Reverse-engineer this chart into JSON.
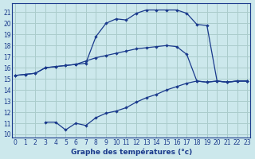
{
  "xlabel": "Graphe des températures (°c)",
  "bg_color": "#cce8ec",
  "grid_color": "#aacccc",
  "line_color": "#1a3a8c",
  "x_ticks": [
    0,
    1,
    2,
    3,
    4,
    5,
    6,
    7,
    8,
    9,
    10,
    11,
    12,
    13,
    14,
    15,
    16,
    17,
    18,
    19,
    20,
    21,
    22,
    23
  ],
  "y_ticks": [
    10,
    11,
    12,
    13,
    14,
    15,
    16,
    17,
    18,
    19,
    20,
    21
  ],
  "xlim": [
    -0.3,
    23.3
  ],
  "ylim": [
    9.7,
    21.8
  ],
  "line1_x": [
    0,
    1,
    2,
    3,
    4,
    5,
    6,
    7,
    8,
    9,
    10,
    11,
    12,
    13,
    14,
    15,
    16,
    17,
    18,
    19,
    20,
    21,
    22,
    23
  ],
  "line1_y": [
    15.3,
    15.4,
    15.5,
    16.0,
    16.1,
    16.2,
    16.3,
    16.4,
    18.8,
    20.0,
    20.4,
    20.3,
    20.9,
    21.2,
    21.2,
    21.2,
    21.2,
    20.9,
    19.9,
    19.8,
    14.8,
    14.7,
    14.8,
    14.8
  ],
  "line2_x": [
    0,
    1,
    2,
    3,
    4,
    5,
    6,
    7,
    8,
    9,
    10,
    11,
    12,
    13,
    14,
    15,
    16,
    17,
    18,
    19,
    20,
    21,
    22,
    23
  ],
  "line2_y": [
    15.3,
    15.4,
    15.5,
    16.0,
    16.1,
    16.2,
    16.3,
    16.6,
    16.9,
    17.1,
    17.3,
    17.5,
    17.7,
    17.8,
    17.9,
    18.0,
    17.9,
    17.2,
    14.8,
    14.7,
    14.8,
    14.7,
    14.8,
    14.8
  ],
  "line3_x": [
    3,
    4,
    5,
    6,
    7,
    8,
    9,
    10,
    11,
    12,
    13,
    14,
    15,
    16,
    17,
    18,
    19,
    20,
    21,
    22,
    23
  ],
  "line3_y": [
    11.1,
    11.1,
    10.4,
    11.0,
    10.8,
    11.5,
    11.9,
    12.1,
    12.4,
    12.9,
    13.3,
    13.6,
    14.0,
    14.3,
    14.6,
    14.8,
    14.7,
    14.8,
    14.7,
    14.8,
    14.8
  ]
}
